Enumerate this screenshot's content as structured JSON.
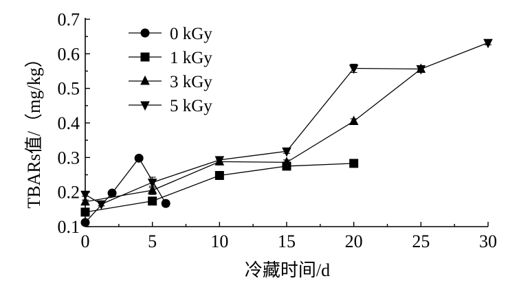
{
  "chart_data": {
    "type": "line",
    "xlabel": "冷藏时间/d",
    "ylabel": "TBARs值/（mg/kg）",
    "xlim": [
      0,
      30
    ],
    "ylim": [
      0.1,
      0.7
    ],
    "xticks": [
      "0",
      "5",
      "10",
      "15",
      "20",
      "25",
      "30"
    ],
    "yticks": [
      "0.1",
      "0.2",
      "0.3",
      "0.4",
      "0.5",
      "0.6",
      "0.7"
    ],
    "grid": false,
    "legend_position": "top-left",
    "series": [
      {
        "name": "0 kGy",
        "marker": "circle",
        "points": [
          [
            0,
            0.112
          ],
          [
            2,
            0.197
          ],
          [
            4,
            0.298
          ],
          [
            6,
            0.167
          ]
        ],
        "errors": [
          0.005,
          0.005,
          0.005,
          0.008
        ]
      },
      {
        "name": "1 kGy",
        "marker": "square",
        "points": [
          [
            0,
            0.142
          ],
          [
            5,
            0.174
          ],
          [
            10,
            0.248
          ],
          [
            15,
            0.275
          ],
          [
            20,
            0.283
          ]
        ],
        "errors": [
          0.005,
          0.006,
          0.006,
          0.007,
          0.006
        ]
      },
      {
        "name": "3 kGy",
        "marker": "triangle-up",
        "points": [
          [
            0,
            0.172
          ],
          [
            5,
            0.205
          ],
          [
            10,
            0.288
          ],
          [
            15,
            0.286
          ],
          [
            20,
            0.405
          ],
          [
            25,
            0.556
          ]
        ],
        "errors": [
          0.005,
          0.012,
          0.006,
          0.007,
          0.007,
          0.008
        ]
      },
      {
        "name": "5 kGy",
        "marker": "triangle-down",
        "points": [
          [
            0,
            0.193
          ],
          [
            1.2,
            0.165
          ],
          [
            5,
            0.228
          ],
          [
            10,
            0.293
          ],
          [
            15,
            0.318
          ],
          [
            20,
            0.558
          ],
          [
            25,
            0.556
          ],
          [
            30,
            0.632
          ]
        ],
        "errors": [
          0.005,
          0.005,
          0.015,
          0.007,
          0.006,
          0.012,
          0.008,
          0.006
        ]
      }
    ]
  }
}
